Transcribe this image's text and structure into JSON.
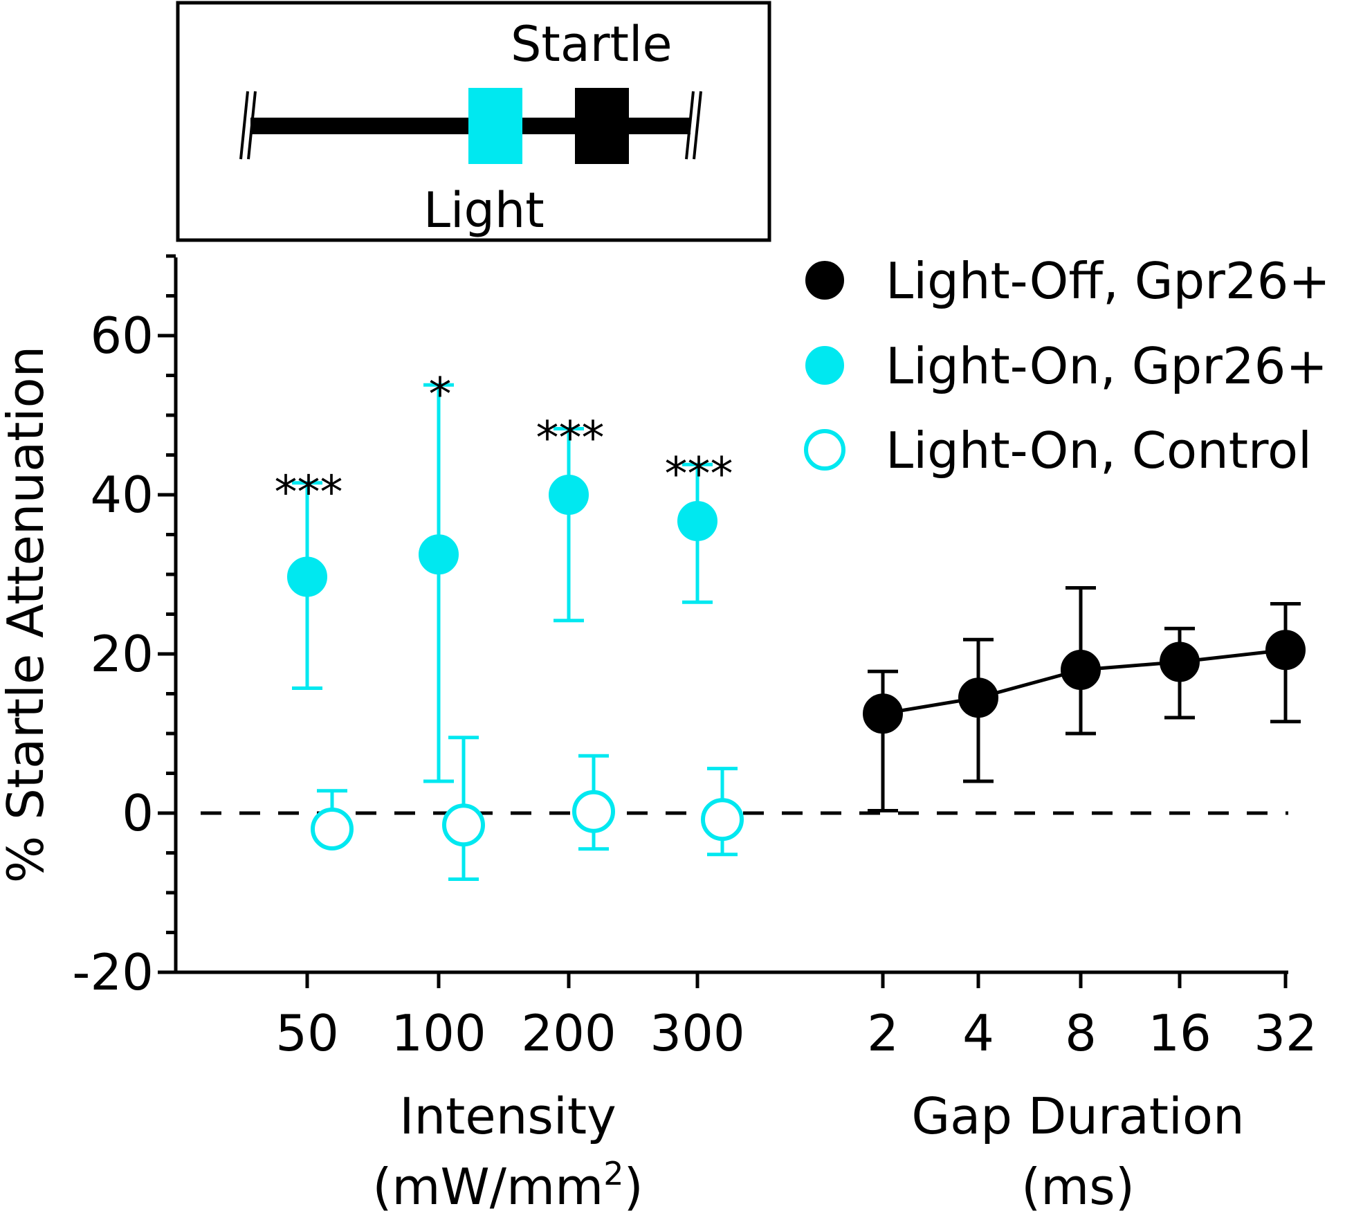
{
  "chart_data": {
    "type": "scatter",
    "ylabel": "% Startle Attenuation",
    "ylim": [
      -20,
      70
    ],
    "yticks": [
      -20,
      0,
      20,
      40,
      60
    ],
    "reference_line_y": 0,
    "panels": [
      {
        "name": "intensity",
        "categories": [
          "50",
          "100",
          "200",
          "300"
        ],
        "xlabel_line1": "Intensity",
        "xlabel_line2_prefix": "(mW/mm",
        "xlabel_line2_superscript": "2",
        "xlabel_line2_suffix": ")"
      },
      {
        "name": "gap",
        "categories": [
          "2",
          "4",
          "8",
          "16",
          "32"
        ],
        "xlabel_line1": "Gap Duration",
        "xlabel_line2": "(ms)"
      }
    ],
    "series": [
      {
        "name": "Light-Off, Gpr26+",
        "color": "#000000",
        "filled": true,
        "connected": true,
        "panel": "gap",
        "values": [
          12.5,
          14.5,
          18,
          19,
          20.5
        ],
        "err_low": [
          0.3,
          4,
          10,
          12,
          11.5
        ],
        "err_high": [
          17.8,
          21.8,
          28.3,
          23.2,
          26.3
        ]
      },
      {
        "name": "Light-On, Gpr26+",
        "color": "#00e8f0",
        "filled": true,
        "connected": false,
        "panel": "intensity",
        "values": [
          29.7,
          32.5,
          40,
          36.7
        ],
        "err_low": [
          15.7,
          4,
          24.2,
          26.5
        ],
        "err_high": [
          41.5,
          53.8,
          48.3,
          43.8
        ],
        "significance": [
          "***",
          "*",
          "***",
          "***"
        ]
      },
      {
        "name": "Light-On, Control",
        "color": "#00e8f0",
        "filled": false,
        "connected": false,
        "panel": "intensity",
        "values": [
          -2,
          -1.5,
          0.2,
          -0.8
        ],
        "err_low": [
          -2,
          -8.3,
          -4.5,
          -5.2
        ],
        "err_high": [
          2.8,
          9.5,
          7.2,
          5.6
        ]
      }
    ],
    "inset": {
      "startle_label": "Startle",
      "light_label": "Light",
      "light_color": "#00e8f0",
      "startle_color": "#000000"
    }
  }
}
